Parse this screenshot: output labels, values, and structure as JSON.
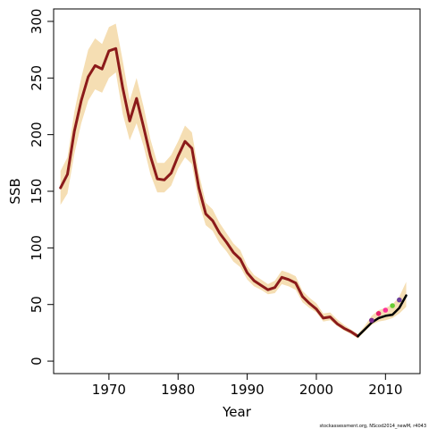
{
  "chart_data": {
    "type": "line",
    "xlabel": "Year",
    "ylabel": "SSB",
    "xlim": [
      1962,
      2015
    ],
    "ylim": [
      -11,
      311
    ],
    "x_ticks": [
      1970,
      1980,
      1990,
      2000,
      2010
    ],
    "y_ticks": [
      0,
      50,
      100,
      150,
      200,
      250,
      300
    ],
    "x_tick_labels": [
      "1970",
      "1980",
      "1990",
      "2000",
      "2010"
    ],
    "y_tick_labels": [
      "0",
      "50",
      "100",
      "150",
      "200",
      "250",
      "300"
    ],
    "grid": false,
    "legend": "none",
    "footer_text": "stockassessment.org, NScod2014_newM, r4043",
    "series": [
      {
        "role": "confidence band",
        "color": "#F5DEB3",
        "x": [
          1963,
          1964,
          1965,
          1966,
          1967,
          1968,
          1969,
          1970,
          1971,
          1972,
          1973,
          1974,
          1975,
          1976,
          1977,
          1978,
          1979,
          1980,
          1981,
          1982,
          1983,
          1984,
          1985,
          1986,
          1987,
          1988,
          1989,
          1990,
          1991,
          1992,
          1993,
          1994,
          1995,
          1996,
          1997,
          1998,
          1999,
          2000,
          2001,
          2002,
          2003,
          2004,
          2005,
          2006,
          2007,
          2008,
          2009,
          2010,
          2011,
          2012,
          2013
        ],
        "lower": [
          138,
          148,
          183,
          210,
          230,
          240,
          237,
          250,
          255,
          218,
          195,
          210,
          190,
          165,
          149,
          149,
          155,
          170,
          180,
          174,
          140,
          120,
          115,
          104,
          97,
          88,
          83,
          72,
          66,
          63,
          59,
          60,
          68,
          66,
          63,
          52,
          47,
          43,
          35,
          36,
          31,
          27,
          24,
          20,
          26,
          32,
          35,
          36,
          38,
          42,
          48
        ],
        "upper": [
          168,
          180,
          220,
          250,
          275,
          285,
          280,
          295,
          298,
          265,
          230,
          250,
          225,
          196,
          175,
          175,
          182,
          194,
          208,
          202,
          166,
          140,
          134,
          122,
          113,
          104,
          98,
          84,
          76,
          72,
          68,
          71,
          80,
          78,
          75,
          62,
          56,
          51,
          42,
          43,
          37,
          32,
          28,
          24,
          31,
          40,
          45,
          47,
          50,
          57,
          70
        ]
      },
      {
        "role": "estimate (dark red)",
        "color": "#8B1A1A",
        "x": [
          1963,
          1964,
          1965,
          1966,
          1967,
          1968,
          1969,
          1970,
          1971,
          1972,
          1973,
          1974,
          1975,
          1976,
          1977,
          1978,
          1979,
          1980,
          1981,
          1982,
          1983,
          1984,
          1985,
          1986,
          1987,
          1988,
          1989,
          1990,
          1991,
          1992,
          1993,
          1994,
          1995,
          1996,
          1997,
          1998,
          1999,
          2000,
          2001,
          2002,
          2003,
          2004,
          2005,
          2006
        ],
        "values": [
          153,
          165,
          203,
          230,
          251,
          261,
          258,
          274,
          276,
          241,
          212,
          232,
          207,
          181,
          161,
          160,
          166,
          181,
          194,
          188,
          153,
          130,
          124,
          113,
          105,
          96,
          90,
          78,
          71,
          67,
          63,
          65,
          74,
          72,
          69,
          57,
          51,
          46,
          38,
          39,
          33,
          29,
          26,
          22
        ]
      },
      {
        "role": "estimate (black, recent)",
        "color": "#000000",
        "x": [
          2006,
          2007,
          2008,
          2009,
          2010,
          2011,
          2012,
          2013
        ],
        "values": [
          22,
          28,
          34,
          38,
          40,
          41,
          47,
          58
        ]
      }
    ],
    "points": [
      {
        "x": 2008,
        "y": 36,
        "color": "#7B2D8E"
      },
      {
        "x": 2009,
        "y": 42,
        "color": "#E8256B"
      },
      {
        "x": 2010,
        "y": 45,
        "color": "#FF3399"
      },
      {
        "x": 2011,
        "y": 49,
        "color": "#66CC33"
      },
      {
        "x": 2012,
        "y": 54,
        "color": "#6A3D9A"
      }
    ]
  }
}
